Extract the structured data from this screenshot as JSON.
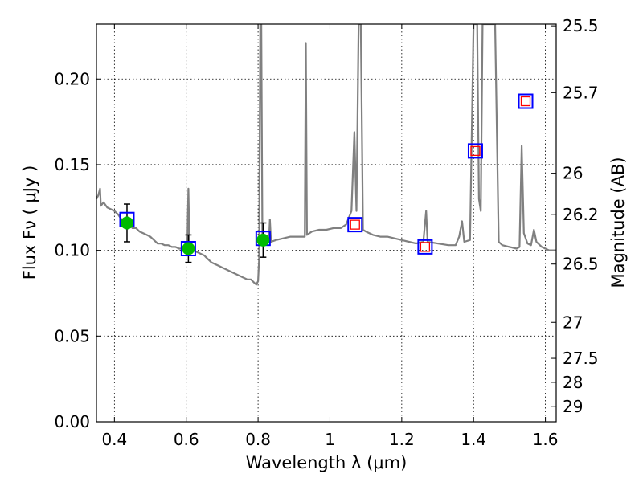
{
  "chart_data": {
    "type": "scatter",
    "xlabel": "Wavelength  λ (μm)",
    "ylabel": "Flux  Fν  ( μJy )",
    "ylabel_right": "Magnitude (AB)",
    "xlim": [
      0.35,
      1.63
    ],
    "ylim": [
      0.0,
      0.232
    ],
    "grid": true,
    "x_ticks": [
      0.4,
      0.6,
      0.8,
      1.0,
      1.2,
      1.4,
      1.6
    ],
    "x_tick_labels": [
      "0.4",
      "0.6",
      "0.8",
      "1",
      "1.2",
      "1.4",
      "1.6"
    ],
    "y_ticks": [
      0.0,
      0.05,
      0.1,
      0.15,
      0.2
    ],
    "y_tick_labels": [
      "0.00",
      "0.05",
      "0.10",
      "0.15",
      "0.20"
    ],
    "right_ticks": [
      {
        "label": "25.5",
        "flux": 0.231
      },
      {
        "label": "25.7",
        "flux": 0.192
      },
      {
        "label": "26",
        "flux": 0.145
      },
      {
        "label": "26.2",
        "flux": 0.121
      },
      {
        "label": "26.5",
        "flux": 0.092
      },
      {
        "label": "27",
        "flux": 0.058
      },
      {
        "label": "27.5",
        "flux": 0.037
      },
      {
        "label": "28",
        "flux": 0.023
      },
      {
        "label": "29",
        "flux": 0.009
      }
    ],
    "series": [
      {
        "kind": "model-spectrum",
        "color": "#808080",
        "points": [
          [
            0.35,
            0.13
          ],
          [
            0.355,
            0.132
          ],
          [
            0.36,
            0.136
          ],
          [
            0.362,
            0.126
          ],
          [
            0.37,
            0.128
          ],
          [
            0.38,
            0.125
          ],
          [
            0.39,
            0.124
          ],
          [
            0.4,
            0.123
          ],
          [
            0.41,
            0.121
          ],
          [
            0.42,
            0.118
          ],
          [
            0.43,
            0.117
          ],
          [
            0.44,
            0.116
          ],
          [
            0.45,
            0.113
          ],
          [
            0.46,
            0.113
          ],
          [
            0.47,
            0.111
          ],
          [
            0.48,
            0.11
          ],
          [
            0.49,
            0.109
          ],
          [
            0.5,
            0.108
          ],
          [
            0.51,
            0.106
          ],
          [
            0.52,
            0.104
          ],
          [
            0.53,
            0.104
          ],
          [
            0.54,
            0.103
          ],
          [
            0.55,
            0.103
          ],
          [
            0.56,
            0.102
          ],
          [
            0.57,
            0.102
          ],
          [
            0.58,
            0.101
          ],
          [
            0.59,
            0.101
          ],
          [
            0.6,
            0.1
          ],
          [
            0.603,
            0.105
          ],
          [
            0.606,
            0.136
          ],
          [
            0.609,
            0.104
          ],
          [
            0.615,
            0.101
          ],
          [
            0.62,
            0.1
          ],
          [
            0.63,
            0.099
          ],
          [
            0.64,
            0.098
          ],
          [
            0.65,
            0.097
          ],
          [
            0.66,
            0.095
          ],
          [
            0.67,
            0.093
          ],
          [
            0.68,
            0.092
          ],
          [
            0.69,
            0.091
          ],
          [
            0.7,
            0.09
          ],
          [
            0.71,
            0.089
          ],
          [
            0.72,
            0.088
          ],
          [
            0.73,
            0.087
          ],
          [
            0.74,
            0.086
          ],
          [
            0.75,
            0.085
          ],
          [
            0.76,
            0.084
          ],
          [
            0.77,
            0.083
          ],
          [
            0.78,
            0.083
          ],
          [
            0.79,
            0.081
          ],
          [
            0.795,
            0.08
          ],
          [
            0.8,
            0.082
          ],
          [
            0.803,
            0.095
          ],
          [
            0.806,
            0.232
          ],
          [
            0.809,
            0.232
          ],
          [
            0.812,
            0.105
          ],
          [
            0.82,
            0.104
          ],
          [
            0.83,
            0.105
          ],
          [
            0.833,
            0.118
          ],
          [
            0.836,
            0.105
          ],
          [
            0.85,
            0.106
          ],
          [
            0.87,
            0.107
          ],
          [
            0.89,
            0.108
          ],
          [
            0.91,
            0.108
          ],
          [
            0.93,
            0.108
          ],
          [
            0.933,
            0.221
          ],
          [
            0.936,
            0.109
          ],
          [
            0.95,
            0.111
          ],
          [
            0.97,
            0.112
          ],
          [
            0.99,
            0.112
          ],
          [
            1.01,
            0.113
          ],
          [
            1.03,
            0.113
          ],
          [
            1.045,
            0.115
          ],
          [
            1.06,
            0.123
          ],
          [
            1.068,
            0.169
          ],
          [
            1.074,
            0.123
          ],
          [
            1.08,
            0.232
          ],
          [
            1.086,
            0.232
          ],
          [
            1.092,
            0.112
          ],
          [
            1.1,
            0.111
          ],
          [
            1.12,
            0.109
          ],
          [
            1.14,
            0.108
          ],
          [
            1.16,
            0.108
          ],
          [
            1.18,
            0.107
          ],
          [
            1.2,
            0.106
          ],
          [
            1.22,
            0.105
          ],
          [
            1.24,
            0.104
          ],
          [
            1.26,
            0.105
          ],
          [
            1.268,
            0.123
          ],
          [
            1.272,
            0.105
          ],
          [
            1.3,
            0.104
          ],
          [
            1.33,
            0.103
          ],
          [
            1.35,
            0.103
          ],
          [
            1.36,
            0.108
          ],
          [
            1.368,
            0.117
          ],
          [
            1.374,
            0.105
          ],
          [
            1.39,
            0.106
          ],
          [
            1.4,
            0.232
          ],
          [
            1.41,
            0.232
          ],
          [
            1.415,
            0.13
          ],
          [
            1.42,
            0.123
          ],
          [
            1.425,
            0.232
          ],
          [
            1.45,
            0.232
          ],
          [
            1.46,
            0.232
          ],
          [
            1.47,
            0.105
          ],
          [
            1.48,
            0.103
          ],
          [
            1.5,
            0.102
          ],
          [
            1.52,
            0.101
          ],
          [
            1.528,
            0.102
          ],
          [
            1.534,
            0.161
          ],
          [
            1.54,
            0.11
          ],
          [
            1.55,
            0.104
          ],
          [
            1.56,
            0.103
          ],
          [
            1.568,
            0.112
          ],
          [
            1.575,
            0.105
          ],
          [
            1.59,
            0.102
          ],
          [
            1.61,
            0.1
          ],
          [
            1.63,
            0.1
          ]
        ]
      },
      {
        "kind": "observed",
        "color": "#00bb00",
        "points": [
          {
            "x": 0.435,
            "y": 0.116,
            "err": 0.011
          },
          {
            "x": 0.606,
            "y": 0.101,
            "err": 0.008
          },
          {
            "x": 0.814,
            "y": 0.106,
            "err": 0.01
          }
        ]
      },
      {
        "kind": "model-photometry",
        "color": "#0000ff",
        "points": [
          {
            "x": 0.435,
            "y": 0.118
          },
          {
            "x": 0.606,
            "y": 0.101
          },
          {
            "x": 0.814,
            "y": 0.107
          },
          {
            "x": 1.07,
            "y": 0.115
          },
          {
            "x": 1.265,
            "y": 0.102
          },
          {
            "x": 1.405,
            "y": 0.158
          },
          {
            "x": 1.545,
            "y": 0.187
          }
        ]
      },
      {
        "kind": "predicted",
        "color": "#ff0000",
        "points": [
          {
            "x": 1.07,
            "y": 0.115
          },
          {
            "x": 1.265,
            "y": 0.102
          },
          {
            "x": 1.405,
            "y": 0.158
          },
          {
            "x": 1.545,
            "y": 0.187
          }
        ]
      }
    ]
  }
}
